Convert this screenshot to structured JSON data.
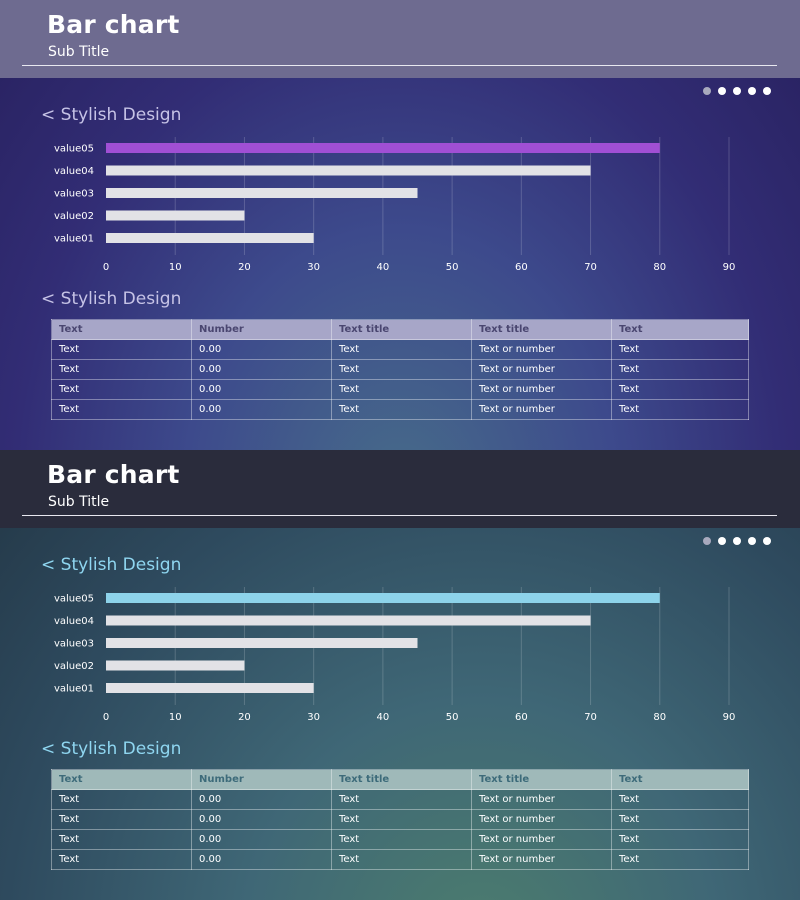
{
  "panels": [
    {
      "title": "Bar chart",
      "subtitle": "Sub Title",
      "chart_heading": "< Stylish Design",
      "table_heading": "< Stylish Design",
      "highlight_color": "#a04fd4",
      "bar_color": "#e2e2e6"
    },
    {
      "title": "Bar chart",
      "subtitle": "Sub Title",
      "chart_heading": "< Stylish Design",
      "table_heading": "< Stylish Design",
      "highlight_color": "#8dd3ea",
      "bar_color": "#e2e2e6"
    }
  ],
  "pagination": {
    "total": 5,
    "active_index": 0
  },
  "chart_data": [
    {
      "type": "bar",
      "orientation": "horizontal",
      "categories": [
        "value05",
        "value04",
        "value03",
        "value02",
        "value01"
      ],
      "values": [
        80,
        70,
        45,
        20,
        30
      ],
      "highlight_category": "value05",
      "xlim": [
        0,
        90
      ],
      "xticks": [
        0,
        10,
        20,
        30,
        40,
        50,
        60,
        70,
        80,
        90
      ],
      "grid": true,
      "title": "",
      "xlabel": "",
      "ylabel": ""
    },
    {
      "type": "bar",
      "orientation": "horizontal",
      "categories": [
        "value05",
        "value04",
        "value03",
        "value02",
        "value01"
      ],
      "values": [
        80,
        70,
        45,
        20,
        30
      ],
      "highlight_category": "value05",
      "xlim": [
        0,
        90
      ],
      "xticks": [
        0,
        10,
        20,
        30,
        40,
        50,
        60,
        70,
        80,
        90
      ],
      "grid": true,
      "title": "",
      "xlabel": "",
      "ylabel": ""
    }
  ],
  "table": {
    "headers": [
      "Text",
      "Number",
      "Text title",
      "Text title",
      "Text"
    ],
    "rows": [
      [
        "Text",
        "0.00",
        "Text",
        "Text or number",
        "Text"
      ],
      [
        "Text",
        "0.00",
        "Text",
        "Text or number",
        "Text"
      ],
      [
        "Text",
        "0.00",
        "Text",
        "Text or number",
        "Text"
      ],
      [
        "Text",
        "0.00",
        "Text",
        "Text or number",
        "Text"
      ]
    ]
  }
}
